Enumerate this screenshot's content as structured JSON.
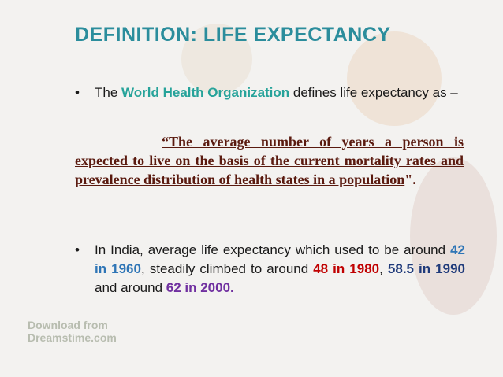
{
  "header": {
    "title": "DEFINITION: LIFE EXPECTANCY"
  },
  "bullets": [
    {
      "segments": [
        "The ",
        "World Health Organization",
        " defines life expectancy as –"
      ]
    },
    {
      "segments": [
        "In India, average life expectancy which used to be around ",
        "42 in 1960",
        ", steadily climbed to around ",
        "48 in 1980",
        ", ",
        "58.5 in 1990",
        " and around ",
        "62 in 2000."
      ]
    }
  ],
  "quote": {
    "text": "“The average number of years a person is expected to live on the basis of the current mortality rates and prevalence distribution of health states in a population",
    "end": "\"."
  },
  "watermark": {
    "line1": "Download from",
    "line2": "Dreamstime.com"
  }
}
